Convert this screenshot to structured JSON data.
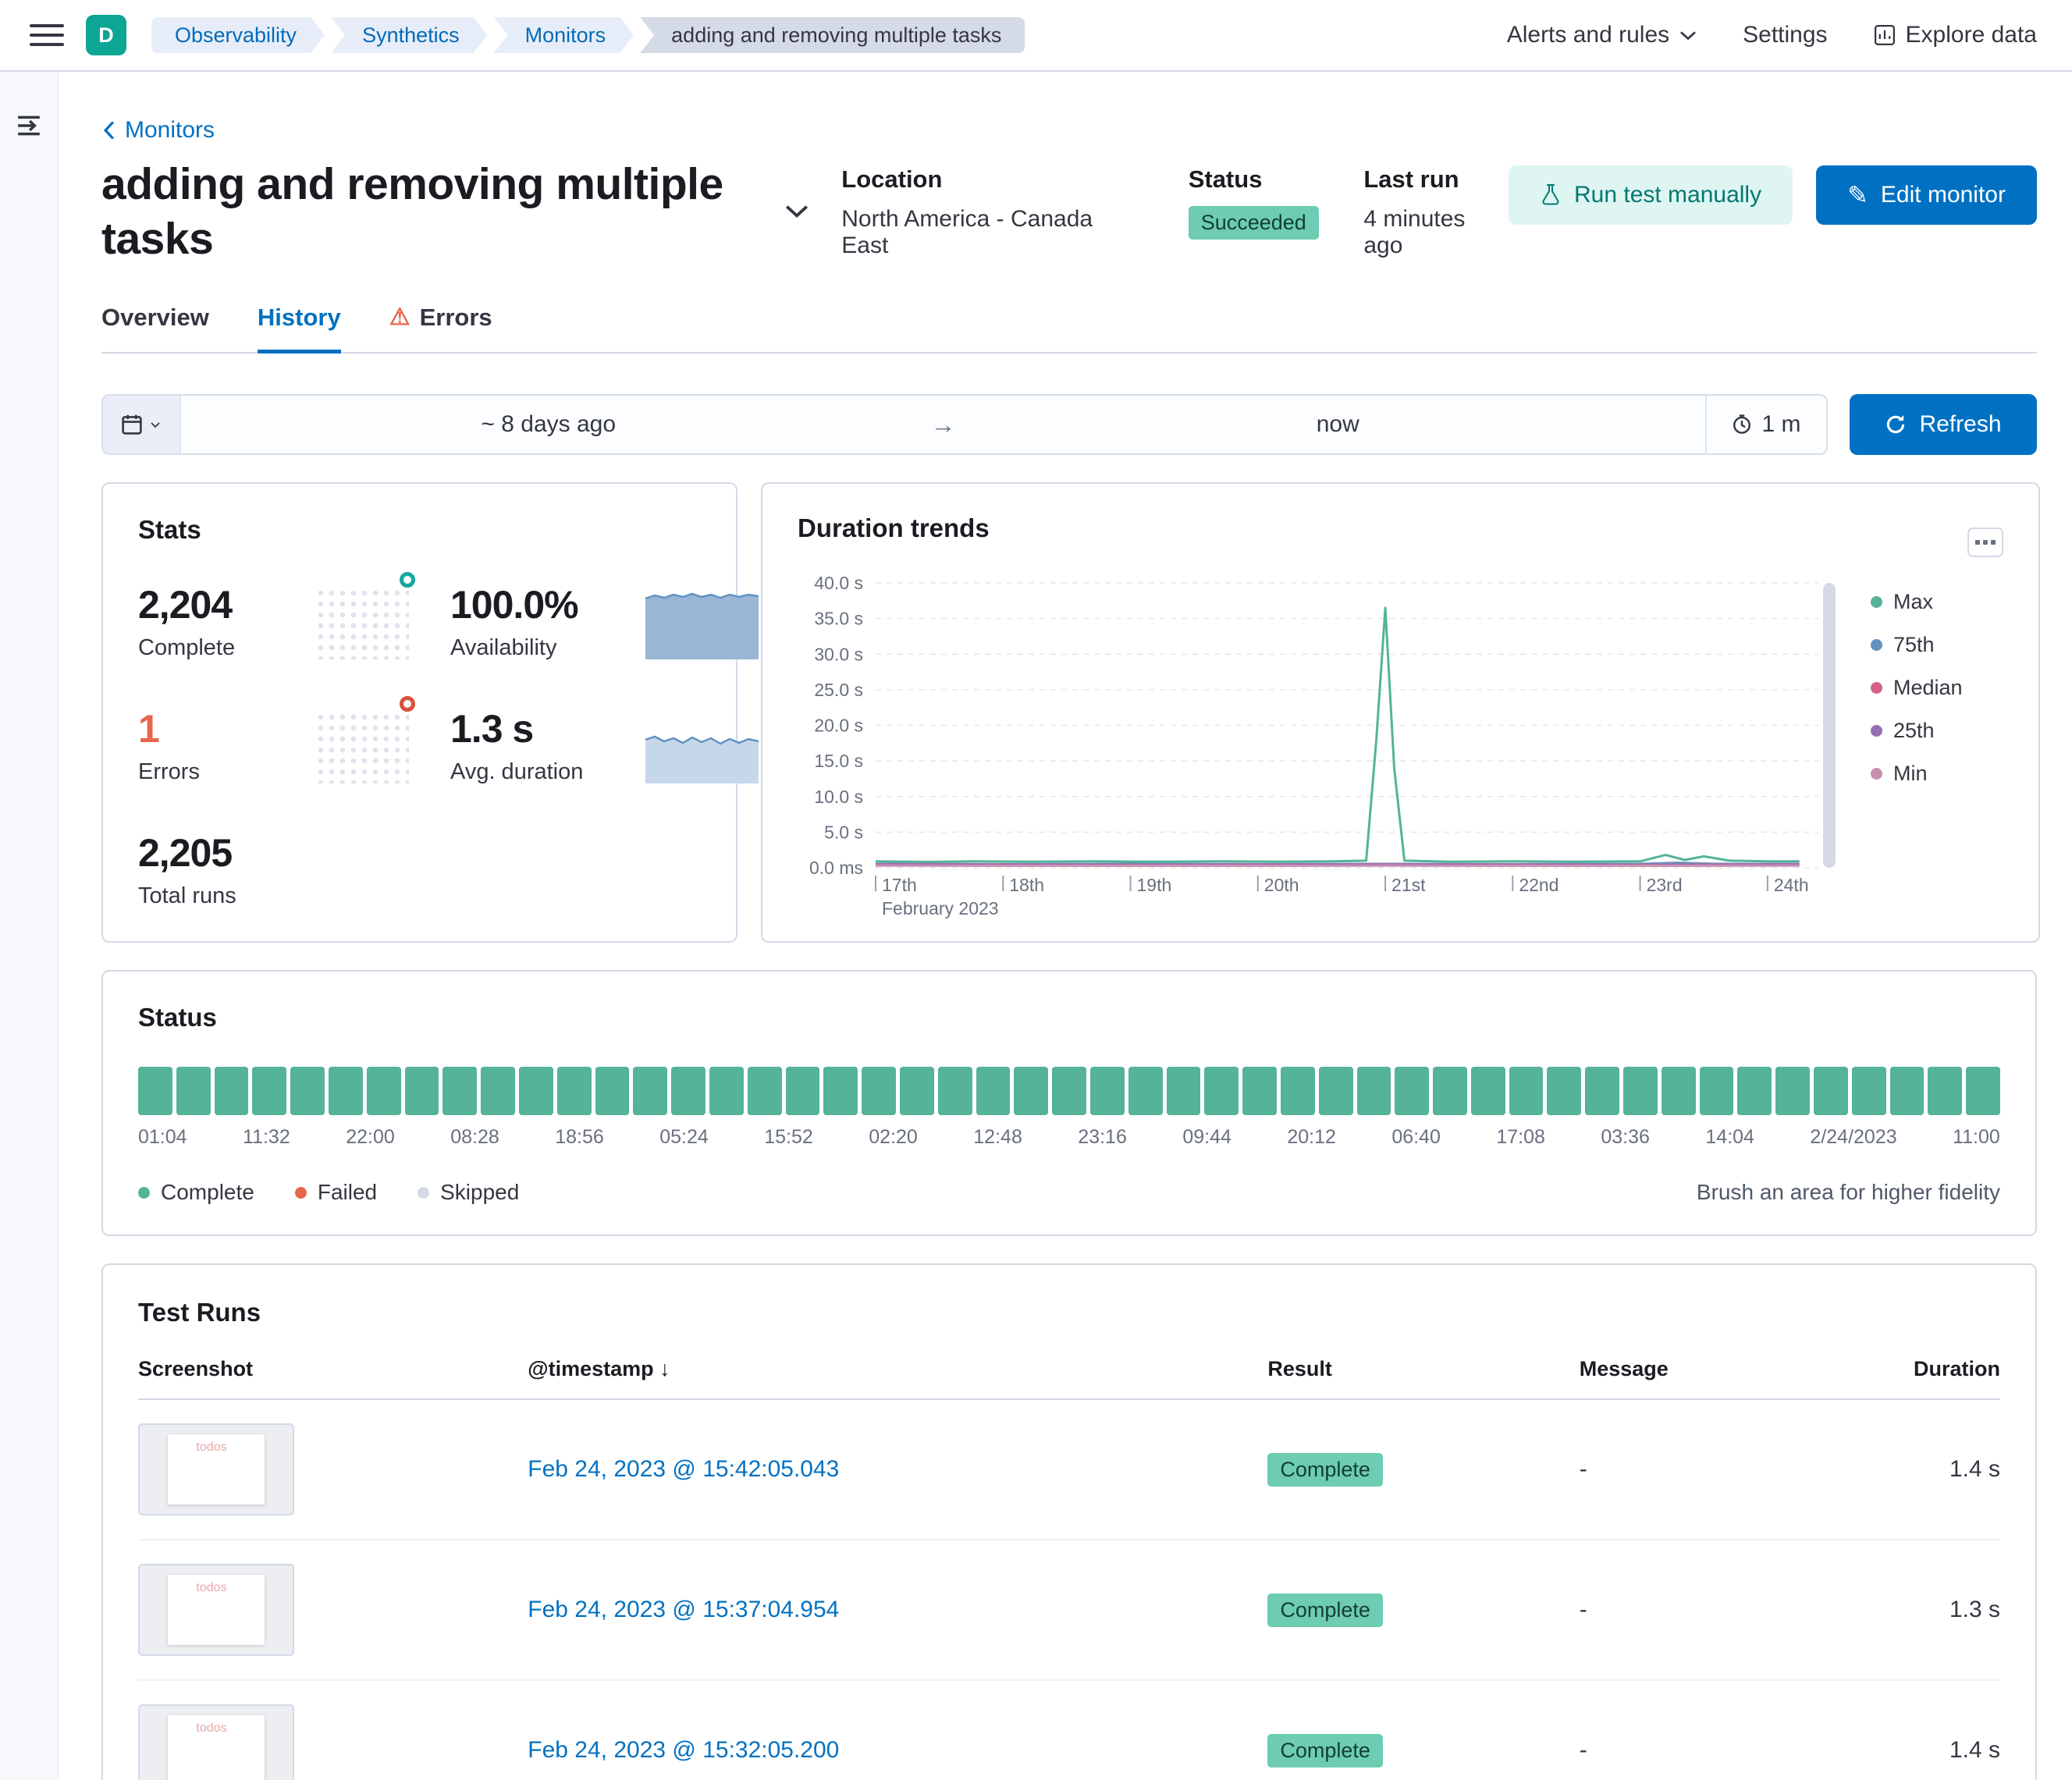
{
  "colors": {
    "primary": "#0071c2",
    "success_badge": "#6dccb1",
    "status_bar_green": "#54b399",
    "error": "#e7664c",
    "avatar_teal": "#0da695"
  },
  "header": {
    "avatar_initial": "D",
    "breadcrumbs": [
      "Observability",
      "Synthetics",
      "Monitors",
      "adding and removing multiple tasks"
    ],
    "alerts_menu": "Alerts and rules",
    "settings": "Settings",
    "explore_data": "Explore data"
  },
  "monitor": {
    "back_link": "Monitors",
    "title": "adding and removing multiple tasks",
    "location_label": "Location",
    "location": "North America - Canada East",
    "status_label": "Status",
    "status": "Succeeded",
    "last_run_label": "Last run",
    "last_run": "4 minutes ago",
    "run_test_button": "Run test manually",
    "edit_button": "Edit monitor"
  },
  "tabs": [
    {
      "label": "Overview",
      "active": false
    },
    {
      "label": "History",
      "active": true
    },
    {
      "label": "Errors",
      "active": false
    }
  ],
  "time_controls": {
    "start": "~ 8 days ago",
    "end": "now",
    "interval": "1 m",
    "refresh_label": "Refresh"
  },
  "stats": {
    "title": "Stats",
    "complete": {
      "value": "2,204",
      "label": "Complete"
    },
    "availability": {
      "value": "100.0%",
      "label": "Availability"
    },
    "errors": {
      "value": "1",
      "label": "Errors"
    },
    "avg_duration": {
      "value": "1.3 s",
      "label": "Avg. duration"
    },
    "total_runs": {
      "value": "2,205",
      "label": "Total runs"
    }
  },
  "chart_data": {
    "type": "line",
    "title": "Duration trends",
    "ylim": [
      0,
      40
    ],
    "y_ticks": [
      "40.0 s",
      "35.0 s",
      "30.0 s",
      "25.0 s",
      "20.0 s",
      "15.0 s",
      "10.0 s",
      "5.0 s",
      "0.0 ms"
    ],
    "xlim": [
      17,
      24.35
    ],
    "x_ticks": [
      "17th",
      "18th",
      "19th",
      "20th",
      "21st",
      "22nd",
      "23rd",
      "24th"
    ],
    "x_subtitle": "February 2023",
    "legend_position": "right",
    "grid": true,
    "series": [
      {
        "name": "Max",
        "color": "#54b399",
        "points": [
          [
            17,
            0.9
          ],
          [
            17.4,
            0.82
          ],
          [
            17.8,
            0.9
          ],
          [
            18.2,
            0.84
          ],
          [
            18.7,
            0.9
          ],
          [
            19.2,
            0.85
          ],
          [
            19.7,
            0.9
          ],
          [
            20.2,
            0.86
          ],
          [
            20.6,
            0.9
          ],
          [
            20.85,
            1.0
          ],
          [
            20.93,
            18.0
          ],
          [
            21.0,
            36.5
          ],
          [
            21.07,
            14.0
          ],
          [
            21.15,
            1.0
          ],
          [
            21.5,
            0.86
          ],
          [
            22.0,
            0.9
          ],
          [
            22.5,
            0.85
          ],
          [
            23.0,
            0.9
          ],
          [
            23.2,
            1.8
          ],
          [
            23.35,
            1.1
          ],
          [
            23.5,
            1.6
          ],
          [
            23.7,
            1.0
          ],
          [
            24.0,
            0.9
          ],
          [
            24.25,
            0.9
          ]
        ]
      },
      {
        "name": "75th",
        "color": "#6092c0",
        "points": [
          [
            17,
            0.55
          ],
          [
            18,
            0.5
          ],
          [
            19,
            0.55
          ],
          [
            20,
            0.5
          ],
          [
            21,
            0.55
          ],
          [
            22,
            0.5
          ],
          [
            23,
            0.55
          ],
          [
            23.3,
            0.7
          ],
          [
            23.6,
            0.55
          ],
          [
            24.25,
            0.55
          ]
        ]
      },
      {
        "name": "Median",
        "color": "#d36086",
        "points": [
          [
            17,
            0.45
          ],
          [
            19,
            0.42
          ],
          [
            21,
            0.45
          ],
          [
            23,
            0.42
          ],
          [
            24.25,
            0.45
          ]
        ]
      },
      {
        "name": "25th",
        "color": "#9170b8",
        "points": [
          [
            17,
            0.38
          ],
          [
            19,
            0.36
          ],
          [
            21,
            0.38
          ],
          [
            23,
            0.36
          ],
          [
            24.25,
            0.38
          ]
        ]
      },
      {
        "name": "Min",
        "color": "#ca8eae",
        "points": [
          [
            17,
            0.3
          ],
          [
            19,
            0.28
          ],
          [
            21,
            0.3
          ],
          [
            23,
            0.28
          ],
          [
            24.25,
            0.3
          ]
        ]
      }
    ]
  },
  "status_panel": {
    "title": "Status",
    "bar_count": 49,
    "ticks": [
      "01:04",
      "11:32",
      "22:00",
      "08:28",
      "18:56",
      "05:24",
      "15:52",
      "02:20",
      "12:48",
      "23:16",
      "09:44",
      "20:12",
      "06:40",
      "17:08",
      "03:36",
      "14:04",
      "2/24/2023",
      "11:00"
    ],
    "legend": [
      {
        "label": "Complete",
        "color": "#54b399"
      },
      {
        "label": "Failed",
        "color": "#e7664c"
      },
      {
        "label": "Skipped",
        "color": "#d3dae6"
      }
    ],
    "hint": "Brush an area for higher fidelity"
  },
  "test_runs": {
    "title": "Test Runs",
    "columns": [
      "Screenshot",
      "@timestamp",
      "Result",
      "Message",
      "Duration"
    ],
    "rows": [
      {
        "timestamp": "Feb 24, 2023 @ 15:42:05.043",
        "result": "Complete",
        "message": "-",
        "duration": "1.4 s",
        "thumb_label": "todos"
      },
      {
        "timestamp": "Feb 24, 2023 @ 15:37:04.954",
        "result": "Complete",
        "message": "-",
        "duration": "1.3 s",
        "thumb_label": "todos"
      },
      {
        "timestamp": "Feb 24, 2023 @ 15:32:05.200",
        "result": "Complete",
        "message": "-",
        "duration": "1.4 s",
        "thumb_label": "todos"
      }
    ]
  }
}
